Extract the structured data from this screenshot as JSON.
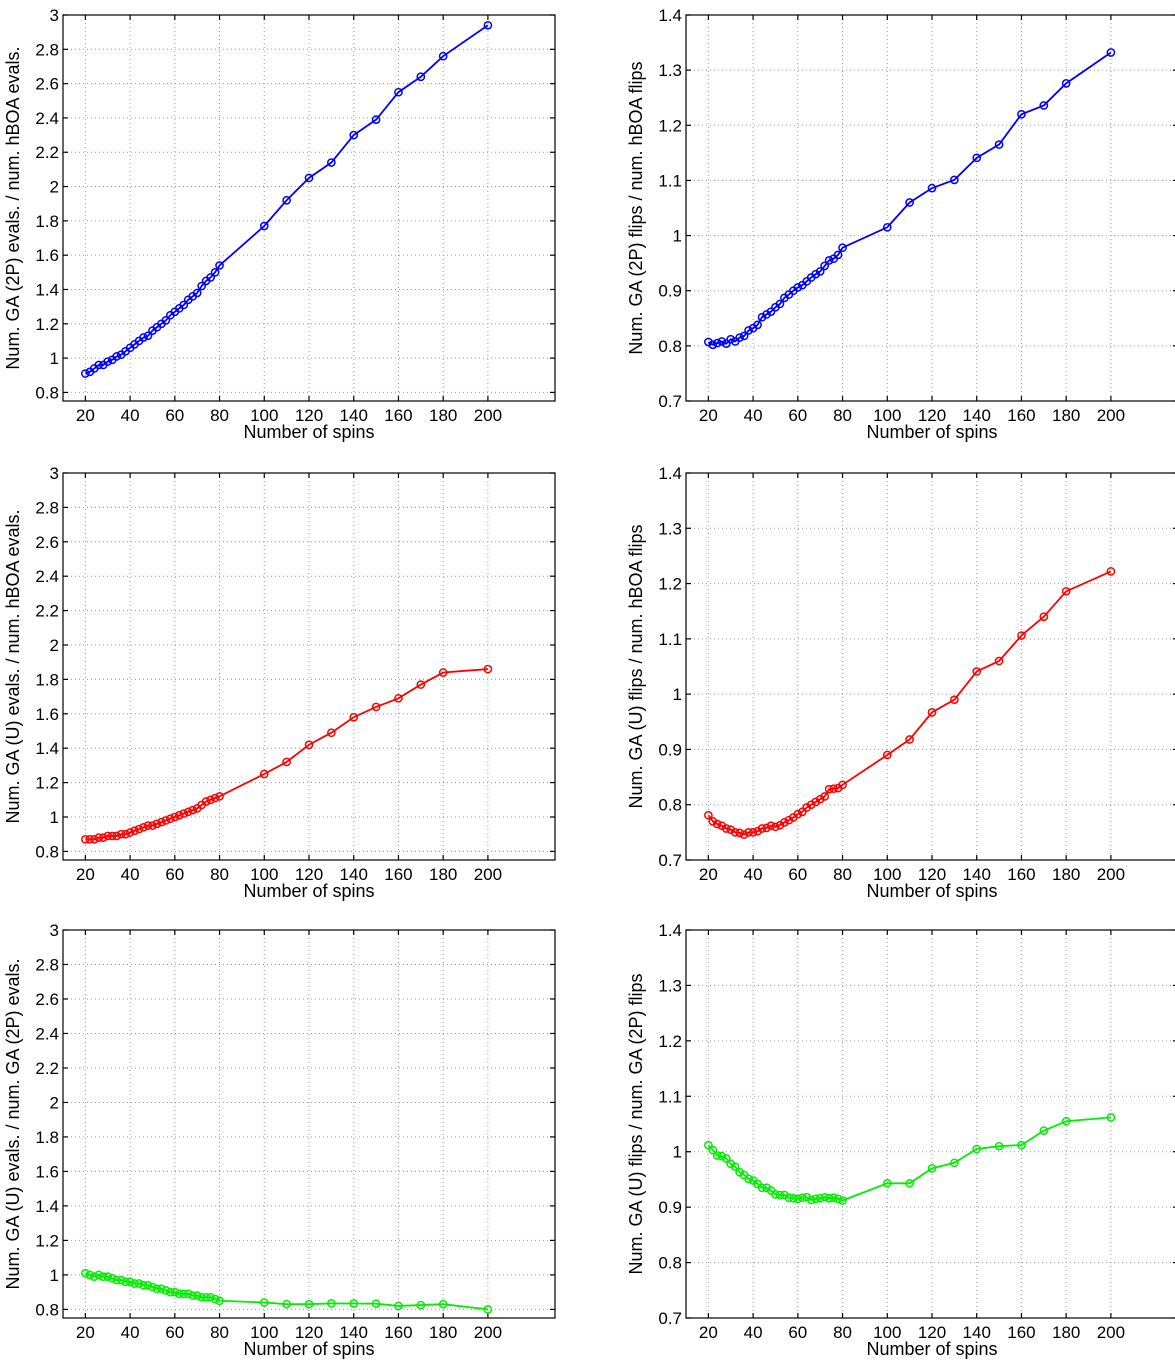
{
  "chart_data": [
    {
      "type": "line",
      "xlabel": "Number of spins",
      "ylabel": "Num. GA (2P) evals. / num. hBOA evals.",
      "xlim": [
        10,
        230
      ],
      "ylim": [
        0.75,
        3.0
      ],
      "xticks": [
        20,
        40,
        60,
        80,
        100,
        120,
        140,
        160,
        180,
        200
      ],
      "yticks": [
        0.8,
        1,
        1.2,
        1.4,
        1.6,
        1.8,
        2,
        2.2,
        2.4,
        2.6,
        2.8,
        3
      ],
      "grid": true,
      "color": "#0000ff",
      "marker": "circle",
      "x": [
        20,
        22,
        24,
        26,
        28,
        30,
        32,
        34,
        36,
        38,
        40,
        42,
        44,
        46,
        48,
        50,
        52,
        54,
        56,
        58,
        60,
        62,
        64,
        66,
        68,
        70,
        72,
        74,
        76,
        78,
        80,
        100,
        110,
        120,
        130,
        140,
        150,
        160,
        170,
        180,
        200
      ],
      "y": [
        0.91,
        0.92,
        0.94,
        0.96,
        0.96,
        0.98,
        0.99,
        1.01,
        1.02,
        1.04,
        1.06,
        1.08,
        1.1,
        1.12,
        1.13,
        1.16,
        1.18,
        1.2,
        1.22,
        1.25,
        1.27,
        1.29,
        1.31,
        1.34,
        1.36,
        1.38,
        1.42,
        1.45,
        1.47,
        1.5,
        1.54,
        1.77,
        1.92,
        2.05,
        2.14,
        2.3,
        2.39,
        2.55,
        2.64,
        2.76,
        2.94
      ]
    },
    {
      "type": "line",
      "xlabel": "Number of spins",
      "ylabel": "Num. GA (2P) flips / num. hBOA flips",
      "xlim": [
        10,
        230
      ],
      "ylim": [
        0.7,
        1.4
      ],
      "xticks": [
        20,
        40,
        60,
        80,
        100,
        120,
        140,
        160,
        180,
        200
      ],
      "yticks": [
        0.7,
        0.8,
        0.9,
        1,
        1.1,
        1.2,
        1.3,
        1.4
      ],
      "grid": true,
      "color": "#0000ff",
      "marker": "circle",
      "x": [
        20,
        22,
        24,
        26,
        28,
        30,
        32,
        34,
        36,
        38,
        40,
        42,
        44,
        46,
        48,
        50,
        52,
        54,
        56,
        58,
        60,
        62,
        64,
        66,
        68,
        70,
        72,
        74,
        76,
        78,
        80,
        100,
        110,
        120,
        130,
        140,
        150,
        160,
        170,
        180,
        200
      ],
      "y": [
        0.807,
        0.802,
        0.805,
        0.808,
        0.804,
        0.812,
        0.808,
        0.815,
        0.818,
        0.828,
        0.832,
        0.838,
        0.852,
        0.857,
        0.862,
        0.87,
        0.876,
        0.887,
        0.893,
        0.9,
        0.906,
        0.91,
        0.917,
        0.924,
        0.93,
        0.935,
        0.945,
        0.955,
        0.958,
        0.965,
        0.978,
        1.015,
        1.06,
        1.086,
        1.101,
        1.141,
        1.165,
        1.22,
        1.236,
        1.276,
        1.332
      ]
    },
    {
      "type": "line",
      "xlabel": "Number of spins",
      "ylabel": "Num. GA (U) evals. / num. hBOA evals.",
      "xlim": [
        10,
        230
      ],
      "ylim": [
        0.75,
        3.0
      ],
      "xticks": [
        20,
        40,
        60,
        80,
        100,
        120,
        140,
        160,
        180,
        200
      ],
      "yticks": [
        0.8,
        1,
        1.2,
        1.4,
        1.6,
        1.8,
        2,
        2.2,
        2.4,
        2.6,
        2.8,
        3
      ],
      "grid": true,
      "color": "#ff0000",
      "marker": "circle",
      "x": [
        20,
        22,
        24,
        26,
        28,
        30,
        32,
        34,
        36,
        38,
        40,
        42,
        44,
        46,
        48,
        50,
        52,
        54,
        56,
        58,
        60,
        62,
        64,
        66,
        68,
        70,
        72,
        74,
        76,
        78,
        80,
        100,
        110,
        120,
        130,
        140,
        150,
        160,
        170,
        180,
        200
      ],
      "y": [
        0.87,
        0.87,
        0.87,
        0.88,
        0.88,
        0.89,
        0.89,
        0.89,
        0.9,
        0.9,
        0.91,
        0.92,
        0.93,
        0.94,
        0.95,
        0.95,
        0.96,
        0.97,
        0.98,
        0.99,
        1.0,
        1.01,
        1.02,
        1.03,
        1.04,
        1.05,
        1.07,
        1.09,
        1.1,
        1.11,
        1.12,
        1.25,
        1.32,
        1.42,
        1.49,
        1.58,
        1.64,
        1.69,
        1.77,
        1.84,
        1.86
      ]
    },
    {
      "type": "line",
      "xlabel": "Number of spins",
      "ylabel": "Num. GA (U) flips / num. hBOA flips",
      "xlim": [
        10,
        230
      ],
      "ylim": [
        0.7,
        1.4
      ],
      "xticks": [
        20,
        40,
        60,
        80,
        100,
        120,
        140,
        160,
        180,
        200
      ],
      "yticks": [
        0.7,
        0.8,
        0.9,
        1,
        1.1,
        1.2,
        1.3,
        1.4
      ],
      "grid": true,
      "color": "#ff0000",
      "marker": "circle",
      "x": [
        20,
        22,
        24,
        26,
        28,
        30,
        32,
        34,
        36,
        38,
        40,
        42,
        44,
        46,
        48,
        50,
        52,
        54,
        56,
        58,
        60,
        62,
        64,
        66,
        68,
        70,
        72,
        74,
        76,
        78,
        80,
        100,
        110,
        120,
        130,
        140,
        150,
        160,
        170,
        180,
        200
      ],
      "y": [
        0.781,
        0.77,
        0.765,
        0.762,
        0.757,
        0.755,
        0.75,
        0.749,
        0.746,
        0.75,
        0.75,
        0.752,
        0.757,
        0.758,
        0.762,
        0.76,
        0.763,
        0.768,
        0.772,
        0.777,
        0.783,
        0.787,
        0.795,
        0.8,
        0.805,
        0.81,
        0.815,
        0.828,
        0.829,
        0.83,
        0.836,
        0.89,
        0.918,
        0.967,
        0.99,
        1.041,
        1.06,
        1.106,
        1.14,
        1.186,
        1.222
      ]
    },
    {
      "type": "line",
      "xlabel": "Number of spins",
      "ylabel": "Num. GA (U) evals. / num. GA (2P) evals.",
      "xlim": [
        10,
        230
      ],
      "ylim": [
        0.75,
        3.0
      ],
      "xticks": [
        20,
        40,
        60,
        80,
        100,
        120,
        140,
        160,
        180,
        200
      ],
      "yticks": [
        0.8,
        1,
        1.2,
        1.4,
        1.6,
        1.8,
        2,
        2.2,
        2.4,
        2.6,
        2.8,
        3
      ],
      "grid": true,
      "color": "#00ee00",
      "marker": "circle",
      "x": [
        20,
        22,
        24,
        26,
        28,
        30,
        32,
        34,
        36,
        38,
        40,
        42,
        44,
        46,
        48,
        50,
        52,
        54,
        56,
        58,
        60,
        62,
        64,
        66,
        68,
        70,
        72,
        74,
        76,
        78,
        80,
        100,
        110,
        120,
        130,
        140,
        150,
        160,
        170,
        180,
        200
      ],
      "y": [
        1.01,
        1.0,
        0.99,
        1.0,
        0.99,
        0.99,
        0.98,
        0.97,
        0.97,
        0.96,
        0.96,
        0.95,
        0.95,
        0.94,
        0.94,
        0.93,
        0.92,
        0.92,
        0.91,
        0.9,
        0.9,
        0.89,
        0.89,
        0.89,
        0.88,
        0.88,
        0.87,
        0.87,
        0.87,
        0.86,
        0.85,
        0.84,
        0.83,
        0.83,
        0.835,
        0.834,
        0.833,
        0.82,
        0.825,
        0.83,
        0.8
      ]
    },
    {
      "type": "line",
      "xlabel": "Number of spins",
      "ylabel": "Num. GA (U) flips / num. GA (2P) flips",
      "xlim": [
        10,
        230
      ],
      "ylim": [
        0.7,
        1.4
      ],
      "xticks": [
        20,
        40,
        60,
        80,
        100,
        120,
        140,
        160,
        180,
        200
      ],
      "yticks": [
        0.7,
        0.8,
        0.9,
        1,
        1.1,
        1.2,
        1.3,
        1.4
      ],
      "grid": true,
      "color": "#00ee00",
      "marker": "circle",
      "x": [
        20,
        22,
        24,
        26,
        28,
        30,
        32,
        34,
        36,
        38,
        40,
        42,
        44,
        46,
        48,
        50,
        52,
        54,
        56,
        58,
        60,
        62,
        64,
        66,
        68,
        70,
        72,
        74,
        76,
        78,
        80,
        100,
        110,
        120,
        130,
        140,
        150,
        160,
        170,
        180,
        200
      ],
      "y": [
        1.012,
        1.003,
        0.993,
        0.992,
        0.988,
        0.978,
        0.973,
        0.963,
        0.958,
        0.951,
        0.948,
        0.942,
        0.935,
        0.935,
        0.93,
        0.923,
        0.922,
        0.922,
        0.917,
        0.916,
        0.915,
        0.917,
        0.918,
        0.913,
        0.915,
        0.916,
        0.918,
        0.916,
        0.917,
        0.915,
        0.912,
        0.943,
        0.943,
        0.97,
        0.98,
        1.005,
        1.01,
        1.012,
        1.038,
        1.055,
        1.062
      ]
    }
  ]
}
